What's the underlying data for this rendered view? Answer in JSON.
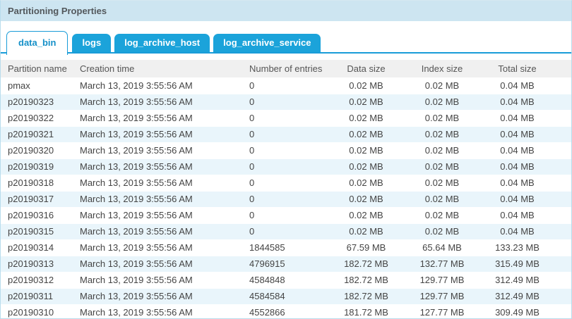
{
  "panel": {
    "title": "Partitioning Properties"
  },
  "tabs": [
    {
      "label": "data_bin",
      "active": true
    },
    {
      "label": "logs",
      "active": false
    },
    {
      "label": "log_archive_host",
      "active": false
    },
    {
      "label": "log_archive_service",
      "active": false
    }
  ],
  "table": {
    "columns": [
      "Partition name",
      "Creation time",
      "Number of entries",
      "Data size",
      "Index size",
      "Total size"
    ],
    "rows": [
      [
        "pmax",
        "March 13, 2019 3:55:56 AM",
        "0",
        "0.02 MB",
        "0.02 MB",
        "0.04 MB"
      ],
      [
        "p20190323",
        "March 13, 2019 3:55:56 AM",
        "0",
        "0.02 MB",
        "0.02 MB",
        "0.04 MB"
      ],
      [
        "p20190322",
        "March 13, 2019 3:55:56 AM",
        "0",
        "0.02 MB",
        "0.02 MB",
        "0.04 MB"
      ],
      [
        "p20190321",
        "March 13, 2019 3:55:56 AM",
        "0",
        "0.02 MB",
        "0.02 MB",
        "0.04 MB"
      ],
      [
        "p20190320",
        "March 13, 2019 3:55:56 AM",
        "0",
        "0.02 MB",
        "0.02 MB",
        "0.04 MB"
      ],
      [
        "p20190319",
        "March 13, 2019 3:55:56 AM",
        "0",
        "0.02 MB",
        "0.02 MB",
        "0.04 MB"
      ],
      [
        "p20190318",
        "March 13, 2019 3:55:56 AM",
        "0",
        "0.02 MB",
        "0.02 MB",
        "0.04 MB"
      ],
      [
        "p20190317",
        "March 13, 2019 3:55:56 AM",
        "0",
        "0.02 MB",
        "0.02 MB",
        "0.04 MB"
      ],
      [
        "p20190316",
        "March 13, 2019 3:55:56 AM",
        "0",
        "0.02 MB",
        "0.02 MB",
        "0.04 MB"
      ],
      [
        "p20190315",
        "March 13, 2019 3:55:56 AM",
        "0",
        "0.02 MB",
        "0.02 MB",
        "0.04 MB"
      ],
      [
        "p20190314",
        "March 13, 2019 3:55:56 AM",
        "1844585",
        "67.59 MB",
        "65.64 MB",
        "133.23 MB"
      ],
      [
        "p20190313",
        "March 13, 2019 3:55:56 AM",
        "4796915",
        "182.72 MB",
        "132.77 MB",
        "315.49 MB"
      ],
      [
        "p20190312",
        "March 13, 2019 3:55:56 AM",
        "4584848",
        "182.72 MB",
        "129.77 MB",
        "312.49 MB"
      ],
      [
        "p20190311",
        "March 13, 2019 3:55:56 AM",
        "4584584",
        "182.72 MB",
        "129.77 MB",
        "312.49 MB"
      ],
      [
        "p20190310",
        "March 13, 2019 3:55:56 AM",
        "4552866",
        "181.72 MB",
        "127.77 MB",
        "309.49 MB"
      ]
    ]
  },
  "colors": {
    "titlebar_bg": "#cde5f1",
    "tab_blue": "#1ba3da",
    "tab_active_text": "#1590c8",
    "tab_underline": "#199cd8",
    "header_row_bg": "#f0f0f0",
    "alt_row_bg": "#e9f5fb",
    "panel_border": "#b9dcec"
  }
}
